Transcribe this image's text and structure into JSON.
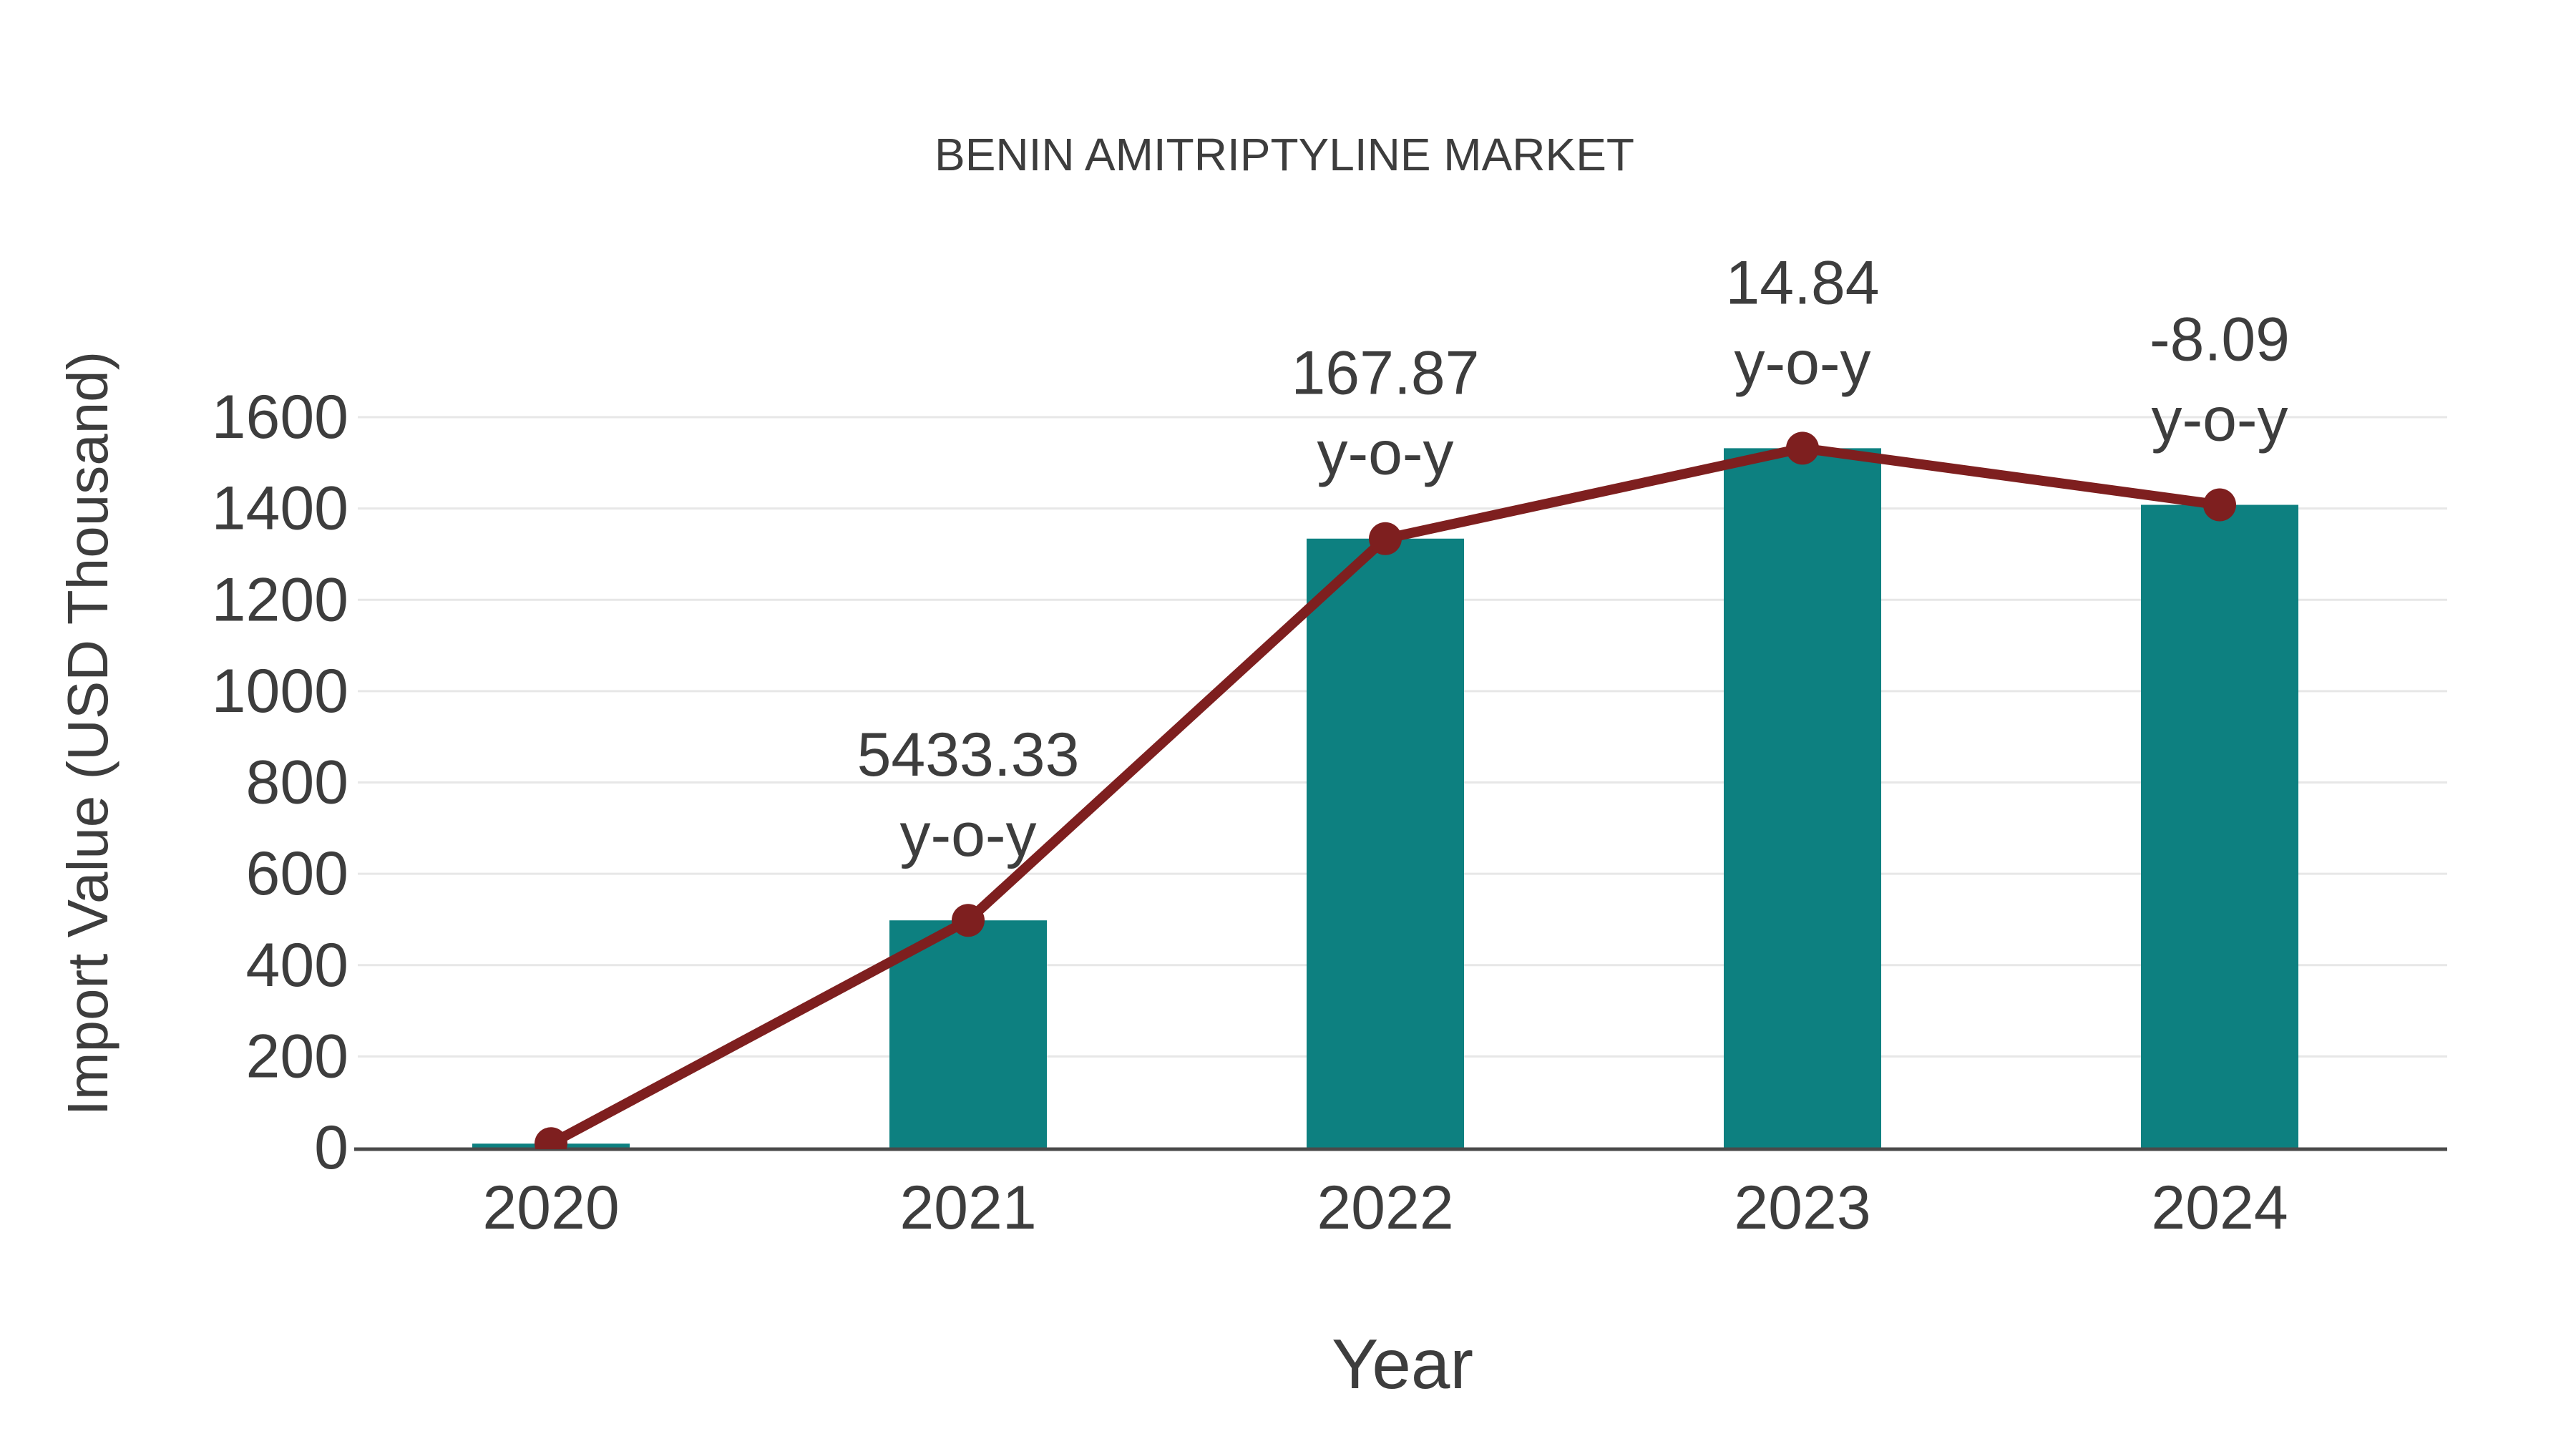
{
  "chart_data": {
    "type": "bar",
    "title": "BENIN AMITRIPTYLINE MARKET",
    "xlabel": "Year",
    "ylabel": "Import Value (USD Thousand)",
    "categories": [
      "2020",
      "2021",
      "2022",
      "2023",
      "2024"
    ],
    "series": [
      {
        "name": "Import Value (USD Thousand)",
        "type": "bar",
        "values": [
          9,
          498,
          1334,
          1532,
          1408
        ]
      },
      {
        "name": "Import Value trend line",
        "type": "line",
        "values": [
          9,
          498,
          1334,
          1532,
          1408
        ]
      }
    ],
    "annotations": [
      {
        "category": "2021",
        "value_label": "5433.33",
        "suffix_label": "y-o-y"
      },
      {
        "category": "2022",
        "value_label": "167.87",
        "suffix_label": "y-o-y"
      },
      {
        "category": "2023",
        "value_label": "14.84",
        "suffix_label": "y-o-y"
      },
      {
        "category": "2024",
        "value_label": "-8.09",
        "suffix_label": "y-o-y"
      }
    ],
    "ytick_labels": [
      "0",
      "200",
      "400",
      "600",
      "800",
      "1000",
      "1200",
      "1400",
      "1600"
    ],
    "yticks": [
      0,
      200,
      400,
      600,
      800,
      1000,
      1200,
      1400,
      1600
    ],
    "ylim": [
      0,
      1600
    ],
    "grid": true,
    "legend_position": "none",
    "colors": {
      "bar": "#0d8080",
      "line": "#7e1f1f",
      "marker": "#7e1f1f",
      "gridline": "#e7e7e7",
      "axis_line": "#4a4a4a",
      "text": "#3d3d3d"
    }
  }
}
